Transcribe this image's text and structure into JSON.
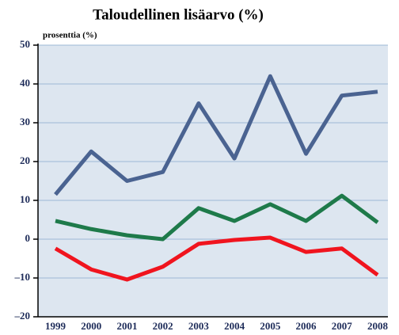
{
  "chart_data": {
    "type": "line",
    "title": "Taloudellinen lisäarvo (%)",
    "y_label": "prosenttia (%)",
    "categories": [
      "1999",
      "2000",
      "2001",
      "2002",
      "2003",
      "2004",
      "2005",
      "2006",
      "2007",
      "2008"
    ],
    "series": [
      {
        "color": "#4a6391",
        "values": [
          11.5,
          22.6,
          15,
          17.3,
          35,
          20.8,
          42,
          22,
          37,
          38
        ]
      },
      {
        "color": "#1e7a4a",
        "values": [
          4.7,
          2.6,
          1,
          0,
          8,
          4.7,
          9,
          4.7,
          11.2,
          4.3
        ]
      },
      {
        "color": "#f0141e",
        "values": [
          -2.4,
          -7.8,
          -10.4,
          -7.1,
          -1.2,
          -0.2,
          0.4,
          -3.3,
          -2.4,
          -9.2
        ]
      }
    ],
    "ylim": [
      -20,
      50
    ],
    "yticks": [
      {
        "value": -20,
        "label": "–20"
      },
      {
        "value": -10,
        "label": "–10"
      },
      0,
      10,
      20,
      30,
      40,
      50
    ],
    "grid": true
  }
}
